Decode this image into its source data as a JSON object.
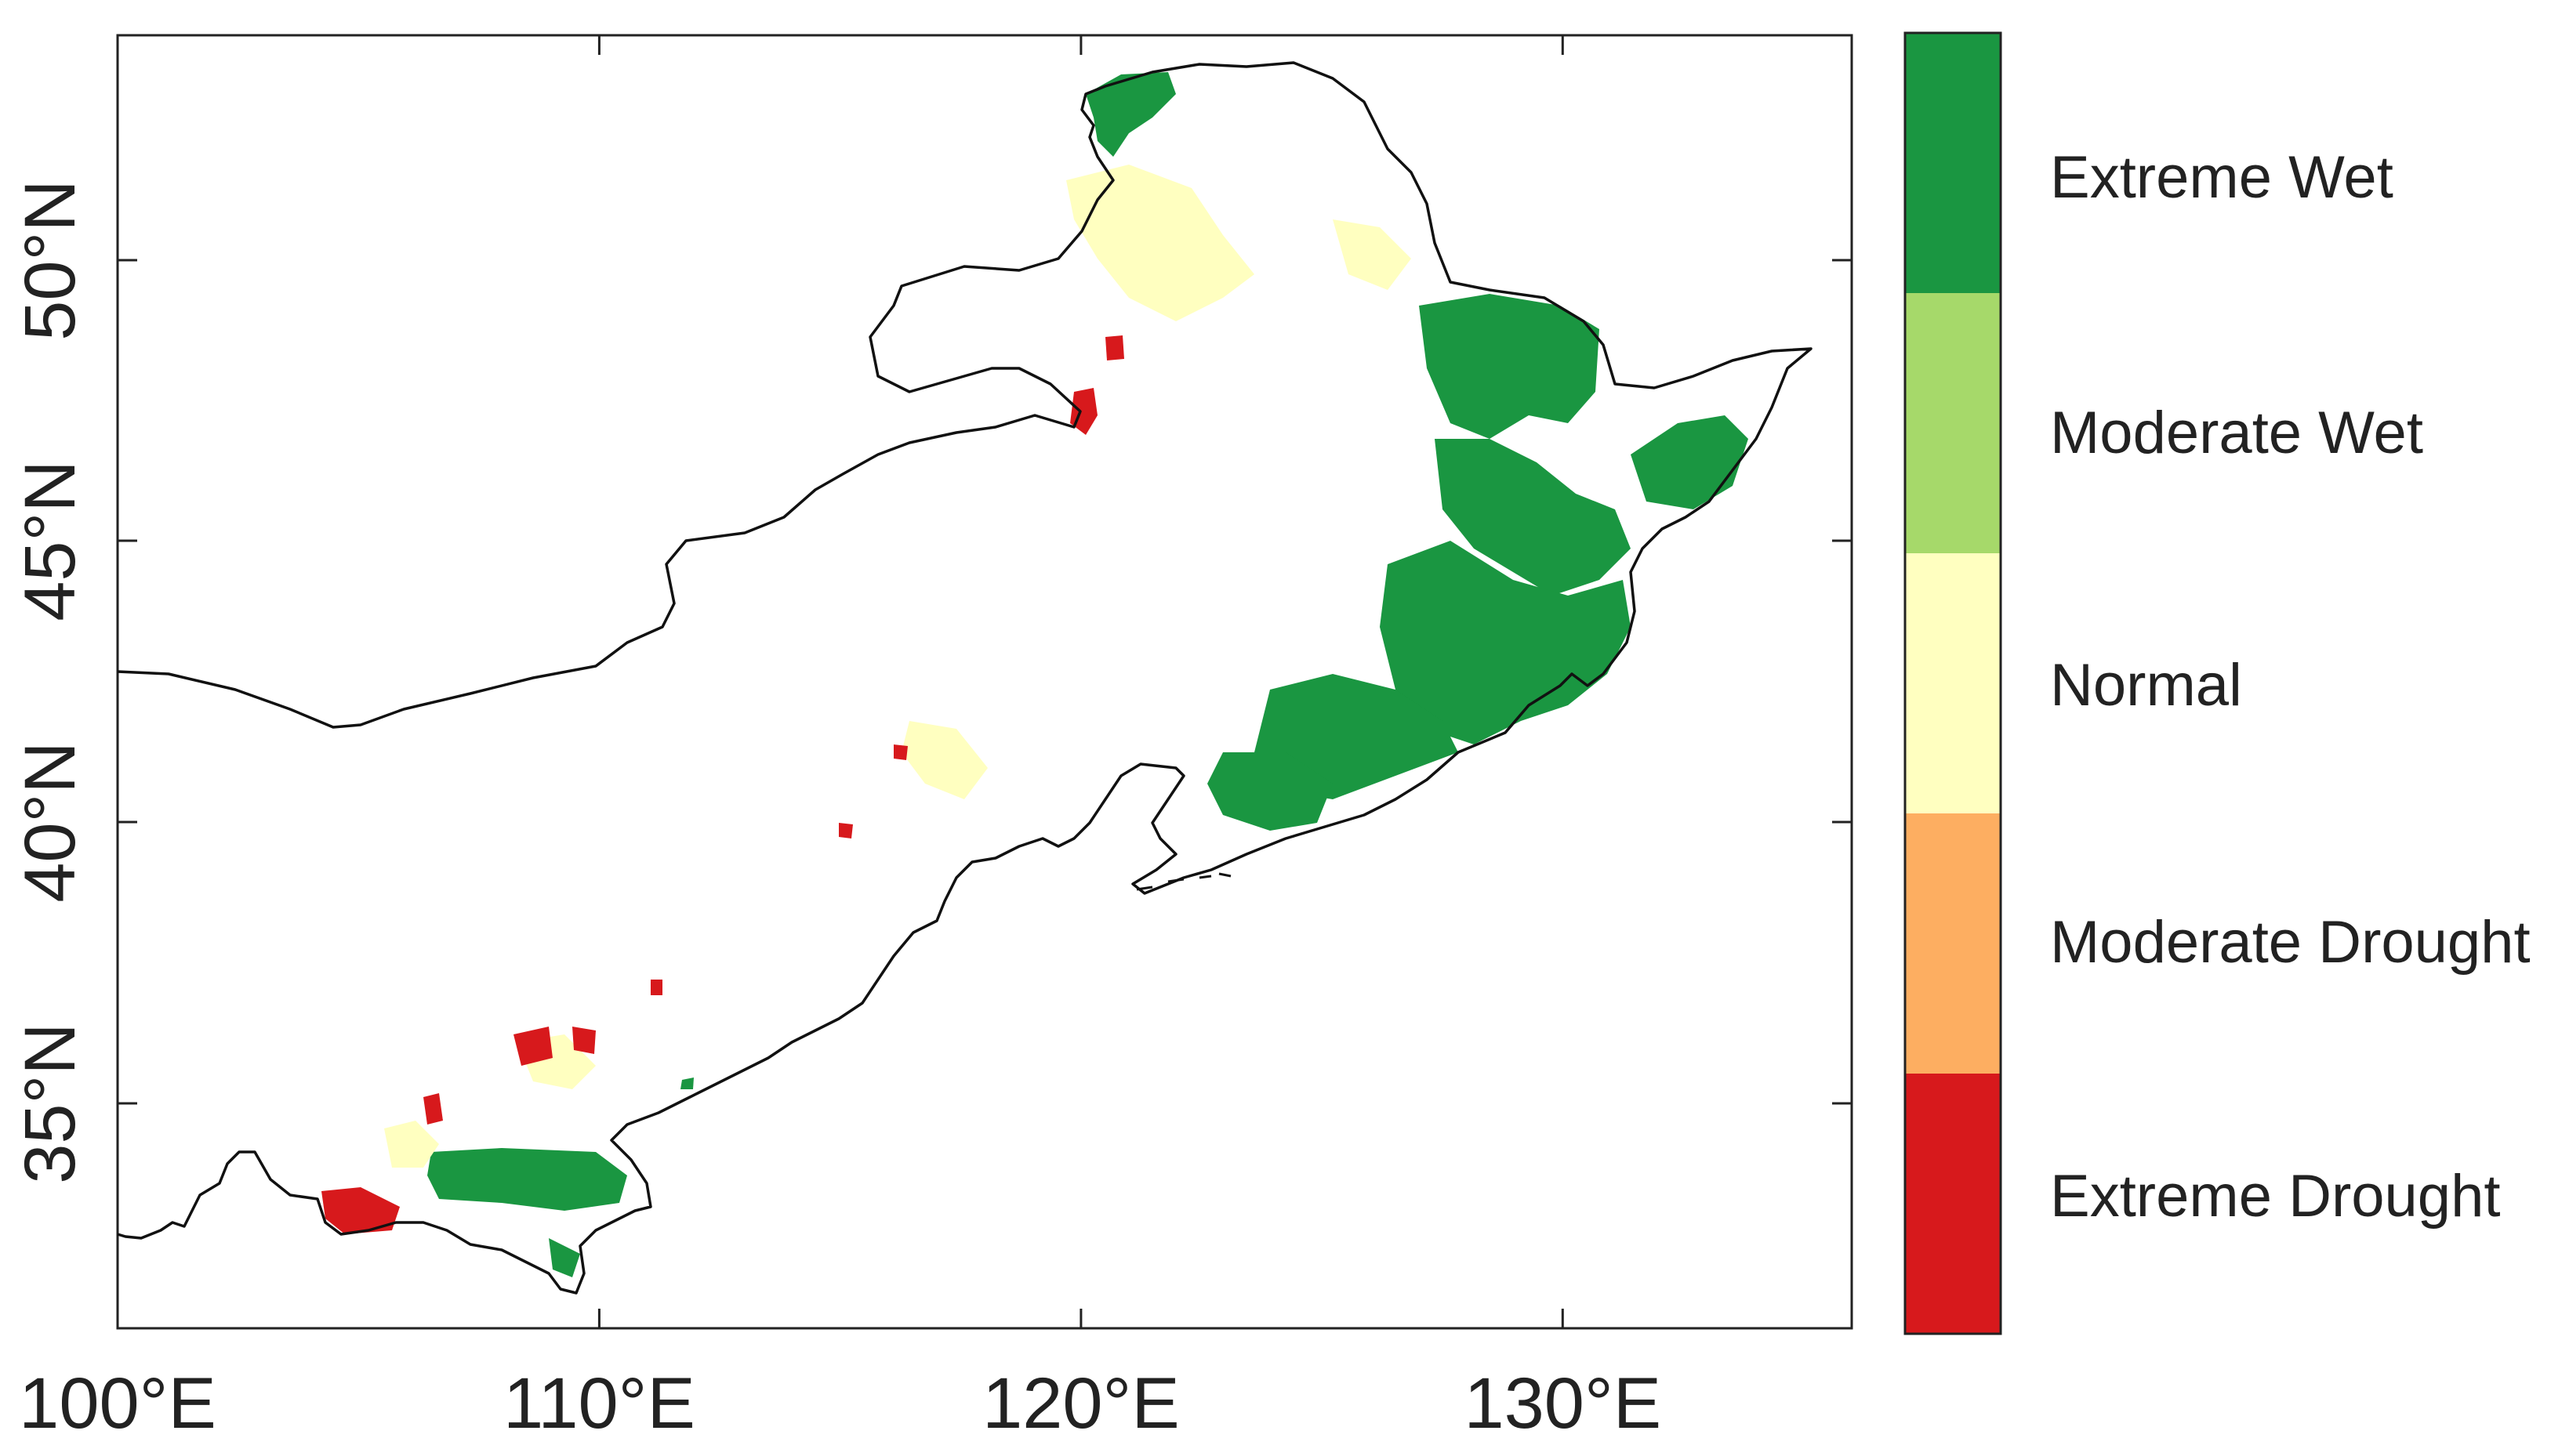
{
  "map": {
    "lon_range": [
      100,
      136
    ],
    "lat_range": [
      31,
      54
    ],
    "x_ticks": [
      {
        "value": 100,
        "label": "100°E"
      },
      {
        "value": 110,
        "label": "110°E"
      },
      {
        "value": 120,
        "label": "120°E"
      },
      {
        "value": 130,
        "label": "130°E"
      }
    ],
    "y_ticks": [
      {
        "value": 35,
        "label": "35°N"
      },
      {
        "value": 40,
        "label": "40°N"
      },
      {
        "value": 45,
        "label": "45°N"
      },
      {
        "value": 50,
        "label": "50°N"
      }
    ],
    "boundary_color": "#111111",
    "background_color": "#ffffff"
  },
  "legend": {
    "position": "right",
    "classes": [
      {
        "label": "Extreme Wet",
        "color": "#1a9641"
      },
      {
        "label": "Moderate Wet",
        "color": "#a6d96a"
      },
      {
        "label": "Normal",
        "color": "#ffffc0"
      },
      {
        "label": "Moderate Drought",
        "color": "#fdae61"
      },
      {
        "label": "Extreme Drought",
        "color": "#d7191c"
      }
    ]
  }
}
